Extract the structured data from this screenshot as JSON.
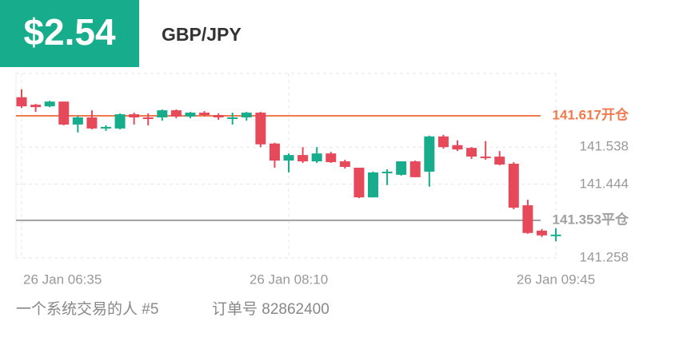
{
  "chart_data": {
    "type": "candlestick",
    "badge": "$2.54",
    "title": "GBP/JPY",
    "up_color": "#17ad8c",
    "down_color": "#e64a5a",
    "candles": [
      {
        "open": 141.664,
        "high": 141.684,
        "low": 141.637,
        "close": 141.641
      },
      {
        "open": 141.645,
        "high": 141.647,
        "low": 141.627,
        "close": 141.639
      },
      {
        "open": 141.641,
        "high": 141.655,
        "low": 141.639,
        "close": 141.653
      },
      {
        "open": 141.653,
        "high": 141.653,
        "low": 141.593,
        "close": 141.595
      },
      {
        "open": 141.595,
        "high": 141.617,
        "low": 141.575,
        "close": 141.613
      },
      {
        "open": 141.613,
        "high": 141.631,
        "low": 141.583,
        "close": 141.585
      },
      {
        "open": 141.585,
        "high": 141.593,
        "low": 141.579,
        "close": 141.589
      },
      {
        "open": 141.585,
        "high": 141.623,
        "low": 141.583,
        "close": 141.621
      },
      {
        "open": 141.621,
        "high": 141.625,
        "low": 141.595,
        "close": 141.613
      },
      {
        "open": 141.613,
        "high": 141.623,
        "low": 141.593,
        "close": 141.609
      },
      {
        "open": 141.613,
        "high": 141.633,
        "low": 141.605,
        "close": 141.631
      },
      {
        "open": 141.631,
        "high": 141.633,
        "low": 141.611,
        "close": 141.615
      },
      {
        "open": 141.615,
        "high": 141.627,
        "low": 141.611,
        "close": 141.625
      },
      {
        "open": 141.625,
        "high": 141.629,
        "low": 141.615,
        "close": 141.619
      },
      {
        "open": 141.619,
        "high": 141.623,
        "low": 141.607,
        "close": 141.613
      },
      {
        "open": 141.611,
        "high": 141.625,
        "low": 141.595,
        "close": 141.613
      },
      {
        "open": 141.613,
        "high": 141.627,
        "low": 141.605,
        "close": 141.625
      },
      {
        "open": 141.625,
        "high": 141.627,
        "low": 141.538,
        "close": 141.545
      },
      {
        "open": 141.547,
        "high": 141.549,
        "low": 141.486,
        "close": 141.504
      },
      {
        "open": 141.504,
        "high": 141.522,
        "low": 141.474,
        "close": 141.518
      },
      {
        "open": 141.518,
        "high": 141.538,
        "low": 141.498,
        "close": 141.502
      },
      {
        "open": 141.502,
        "high": 141.538,
        "low": 141.498,
        "close": 141.522
      },
      {
        "open": 141.522,
        "high": 141.526,
        "low": 141.498,
        "close": 141.5
      },
      {
        "open": 141.502,
        "high": 141.506,
        "low": 141.484,
        "close": 141.488
      },
      {
        "open": 141.486,
        "high": 141.486,
        "low": 141.409,
        "close": 141.411
      },
      {
        "open": 141.411,
        "high": 141.476,
        "low": 141.411,
        "close": 141.474
      },
      {
        "open": 141.474,
        "high": 141.482,
        "low": 141.442,
        "close": 141.476
      },
      {
        "open": 141.468,
        "high": 141.502,
        "low": 141.466,
        "close": 141.502
      },
      {
        "open": 141.502,
        "high": 141.504,
        "low": 141.462,
        "close": 141.462
      },
      {
        "open": 141.476,
        "high": 141.567,
        "low": 141.438,
        "close": 141.565
      },
      {
        "open": 141.565,
        "high": 141.569,
        "low": 141.534,
        "close": 141.538
      },
      {
        "open": 141.543,
        "high": 141.555,
        "low": 141.528,
        "close": 141.532
      },
      {
        "open": 141.536,
        "high": 141.538,
        "low": 141.508,
        "close": 141.514
      },
      {
        "open": 141.514,
        "high": 141.553,
        "low": 141.506,
        "close": 141.51
      },
      {
        "open": 141.514,
        "high": 141.528,
        "low": 141.492,
        "close": 141.494
      },
      {
        "open": 141.496,
        "high": 141.5,
        "low": 141.381,
        "close": 141.385
      },
      {
        "open": 141.391,
        "high": 141.405,
        "low": 141.319,
        "close": 141.321
      },
      {
        "open": 141.327,
        "high": 141.331,
        "low": 141.311,
        "close": 141.315
      },
      {
        "open": 141.315,
        "high": 141.333,
        "low": 141.3,
        "close": 141.317
      }
    ],
    "xticks": [
      {
        "value": 0,
        "label": "26 Jan  06:35"
      },
      {
        "value": 19,
        "label": "26 Jan  08:10"
      },
      {
        "value": 38,
        "label": "26 Jan  09:45"
      }
    ],
    "ylim": [
      141.258,
      141.724
    ],
    "yticks": [
      141.258,
      141.444,
      141.538
    ],
    "levels": [
      {
        "value": 141.617,
        "label": "141.617开仓",
        "color": "#f07a4e"
      },
      {
        "value": 141.353,
        "label": "141.353平仓",
        "color": "#a0a0a0"
      }
    ],
    "grid": true,
    "footer": {
      "name": "一个系统交易的人 #5",
      "order": "订单号 82862400"
    }
  }
}
